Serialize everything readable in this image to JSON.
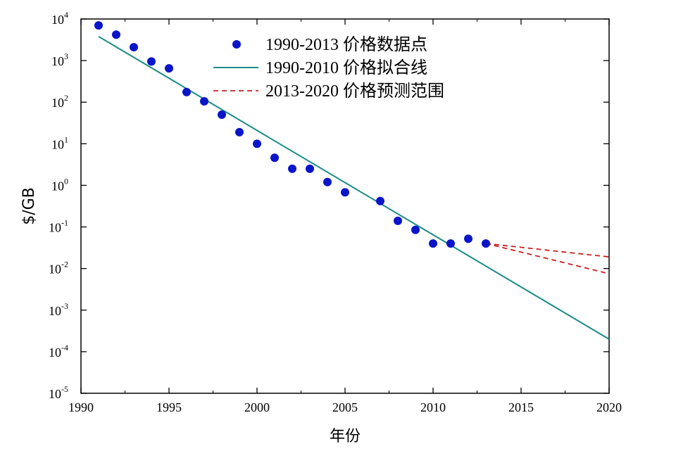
{
  "chart_data": {
    "type": "scatter",
    "xlabel": "年份",
    "ylabel": "$/GB",
    "xlim": [
      1990,
      2020
    ],
    "ylim_log10": [
      -5,
      4
    ],
    "yscale": "log",
    "xticks": [
      "1990",
      "1995",
      "2000",
      "2005",
      "2010",
      "2015",
      "2020"
    ],
    "yticks": [
      {
        "base": "10",
        "exp": "4"
      },
      {
        "base": "10",
        "exp": "3"
      },
      {
        "base": "10",
        "exp": "2"
      },
      {
        "base": "10",
        "exp": "1"
      },
      {
        "base": "10",
        "exp": "0"
      },
      {
        "base": "10",
        "exp": "-1"
      },
      {
        "base": "10",
        "exp": "-2"
      },
      {
        "base": "10",
        "exp": "-3"
      },
      {
        "base": "10",
        "exp": "-4"
      },
      {
        "base": "10",
        "exp": "-5"
      }
    ],
    "grid": false,
    "legend_position": "top-center",
    "series": [
      {
        "name": "1990-2013 价格数据点",
        "kind": "scatter",
        "color": "#0a14c8",
        "x": [
          1991,
          1992,
          1993,
          1994,
          1995,
          1996,
          1997,
          1998,
          1999,
          2000,
          2001,
          2002,
          2003,
          2004,
          2005,
          2007,
          2008,
          2009,
          2010,
          2011,
          2012,
          2013
        ],
        "y": [
          7000,
          4200,
          2100,
          950,
          650,
          175,
          105,
          50,
          19,
          10,
          4.6,
          2.5,
          2.5,
          1.2,
          0.68,
          0.42,
          0.14,
          0.085,
          0.04,
          0.04,
          0.052,
          0.04
        ]
      },
      {
        "name": "1990-2010 价格拟合线",
        "kind": "line",
        "color": "#1a8c88",
        "x": [
          1991,
          2020
        ],
        "y": [
          3800,
          0.0002
        ]
      },
      {
        "name": "2013-2020 价格预测范围",
        "kind": "dashed",
        "color": "#c8201e",
        "lines": [
          {
            "x": [
              2013,
              2020
            ],
            "y": [
              0.04,
              0.019
            ]
          },
          {
            "x": [
              2013,
              2020
            ],
            "y": [
              0.04,
              0.0075
            ]
          }
        ]
      }
    ]
  }
}
